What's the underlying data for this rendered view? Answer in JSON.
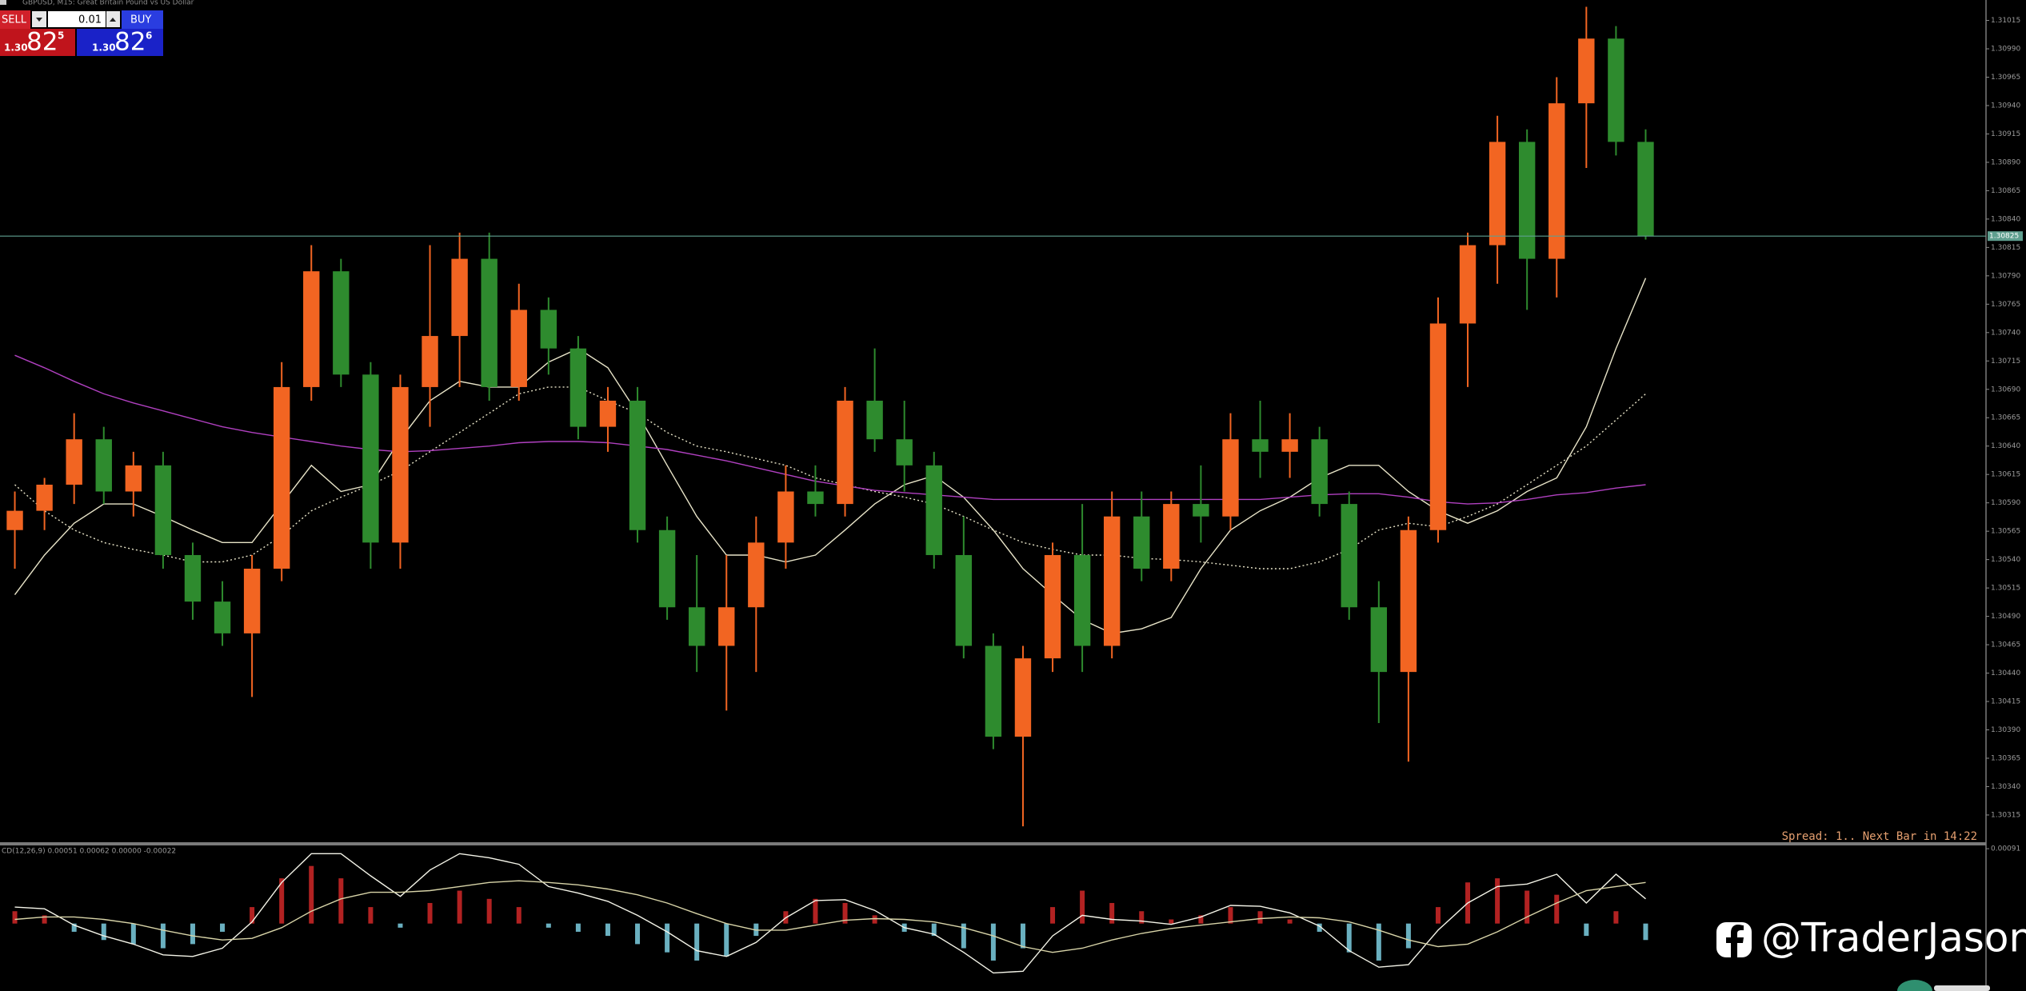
{
  "chart_data": [
    {
      "type": "candlestick",
      "symbol_title": "GBPUSD, M15:  Great Britain Pound vs US Dollar",
      "open": [
        1.30566,
        1.30583,
        1.30606,
        1.30646,
        1.306,
        1.30623,
        1.30544,
        1.30503,
        1.30475,
        1.30532,
        1.30692,
        1.30794,
        1.30703,
        1.30555,
        1.30692,
        1.30737,
        1.30805,
        1.30692,
        1.3076,
        1.30726,
        1.30657,
        1.3068,
        1.30566,
        1.30498,
        1.30464,
        1.30498,
        1.30555,
        1.306,
        1.30589,
        1.3068,
        1.30646,
        1.30623,
        1.30544,
        1.30464,
        1.30384,
        1.30453,
        1.30544,
        1.30464,
        1.30578,
        1.30532,
        1.30589,
        1.30578,
        1.30646,
        1.30635,
        1.30646,
        1.30589,
        1.30498,
        1.30441,
        1.30566,
        1.30748,
        1.30817,
        1.30908,
        1.30805,
        1.30942,
        1.30999,
        1.30908
      ],
      "high": [
        1.306,
        1.30612,
        1.30669,
        1.30657,
        1.30635,
        1.30635,
        1.30555,
        1.30521,
        1.30544,
        1.30714,
        1.30817,
        1.30805,
        1.30714,
        1.30703,
        1.30817,
        1.30828,
        1.30828,
        1.30783,
        1.30771,
        1.30737,
        1.30692,
        1.30692,
        1.30578,
        1.30544,
        1.30544,
        1.30578,
        1.30623,
        1.30623,
        1.30692,
        1.30726,
        1.3068,
        1.30635,
        1.30578,
        1.30475,
        1.30464,
        1.30555,
        1.30589,
        1.306,
        1.306,
        1.306,
        1.30623,
        1.30669,
        1.3068,
        1.30669,
        1.30657,
        1.306,
        1.30521,
        1.30578,
        1.30771,
        1.30828,
        1.30931,
        1.30919,
        1.30965,
        1.31027,
        1.3101,
        1.30919
      ],
      "low": [
        1.30532,
        1.30566,
        1.30589,
        1.30589,
        1.30578,
        1.30532,
        1.30487,
        1.30464,
        1.30419,
        1.30521,
        1.3068,
        1.30692,
        1.30532,
        1.30532,
        1.30657,
        1.30692,
        1.3068,
        1.3068,
        1.30703,
        1.30646,
        1.30635,
        1.30555,
        1.30487,
        1.30441,
        1.30407,
        1.30441,
        1.30532,
        1.30578,
        1.30578,
        1.30635,
        1.306,
        1.30532,
        1.30453,
        1.30373,
        1.30305,
        1.30441,
        1.30441,
        1.30453,
        1.30521,
        1.30521,
        1.30555,
        1.30566,
        1.30612,
        1.30612,
        1.30578,
        1.30487,
        1.30396,
        1.30362,
        1.30555,
        1.30692,
        1.30783,
        1.3076,
        1.30771,
        1.30885,
        1.30896,
        1.30822
      ],
      "close": [
        1.30583,
        1.30606,
        1.30646,
        1.306,
        1.30623,
        1.30544,
        1.30503,
        1.30475,
        1.30532,
        1.30692,
        1.30794,
        1.30703,
        1.30555,
        1.30692,
        1.30737,
        1.30805,
        1.30692,
        1.3076,
        1.30726,
        1.30657,
        1.3068,
        1.30566,
        1.30498,
        1.30464,
        1.30498,
        1.30555,
        1.306,
        1.30589,
        1.3068,
        1.30646,
        1.30623,
        1.30544,
        1.30464,
        1.30384,
        1.30453,
        1.30544,
        1.30464,
        1.30578,
        1.30532,
        1.30589,
        1.30578,
        1.30646,
        1.30635,
        1.30646,
        1.30589,
        1.30498,
        1.30441,
        1.30566,
        1.30748,
        1.30817,
        1.30908,
        1.30805,
        1.30942,
        1.30999,
        1.30908,
        1.30825
      ],
      "up_color": "#f26522",
      "down_color": "#2e8b2e",
      "lines": [
        {
          "color": "#e8e4c8",
          "style": "solid",
          "values": [
            1.30509,
            1.30544,
            1.30572,
            1.30589,
            1.30589,
            1.30578,
            1.30566,
            1.30555,
            1.30555,
            1.30589,
            1.30623,
            1.306,
            1.30606,
            1.30646,
            1.3068,
            1.30697,
            1.30692,
            1.30692,
            1.30714,
            1.30726,
            1.30709,
            1.30669,
            1.30623,
            1.30578,
            1.30544,
            1.30544,
            1.30538,
            1.30544,
            1.30566,
            1.30589,
            1.30606,
            1.30614,
            1.30595,
            1.30566,
            1.30532,
            1.30509,
            1.30487,
            1.30475,
            1.30479,
            1.30489,
            1.30532,
            1.30566,
            1.30583,
            1.30595,
            1.30612,
            1.30623,
            1.30623,
            1.306,
            1.30583,
            1.30572,
            1.30583,
            1.306,
            1.30612,
            1.30657,
            1.30726,
            1.30788
          ]
        },
        {
          "color": "#e8e4c8",
          "style": "dotted",
          "values": [
            1.30606,
            1.30583,
            1.30566,
            1.30555,
            1.30549,
            1.30544,
            1.30538,
            1.30538,
            1.30544,
            1.30561,
            1.30583,
            1.30595,
            1.30606,
            1.30618,
            1.30635,
            1.30652,
            1.30669,
            1.30686,
            1.30692,
            1.30692,
            1.3068,
            1.30669,
            1.30652,
            1.3064,
            1.30635,
            1.30629,
            1.30623,
            1.30612,
            1.30606,
            1.306,
            1.30595,
            1.30589,
            1.30578,
            1.30566,
            1.30555,
            1.30549,
            1.30544,
            1.30544,
            1.30541,
            1.3054,
            1.30538,
            1.30535,
            1.30532,
            1.30532,
            1.30538,
            1.30549,
            1.30566,
            1.30572,
            1.30569,
            1.30578,
            1.30589,
            1.30606,
            1.30623,
            1.3064,
            1.30663,
            1.30686
          ]
        },
        {
          "color": "#b040c0",
          "style": "solid",
          "values": [
            1.3072,
            1.30709,
            1.30697,
            1.30686,
            1.30678,
            1.30671,
            1.30664,
            1.30657,
            1.30652,
            1.30648,
            1.30644,
            1.3064,
            1.30637,
            1.30635,
            1.30636,
            1.30638,
            1.3064,
            1.30643,
            1.30644,
            1.30644,
            1.30643,
            1.3064,
            1.30637,
            1.30632,
            1.30627,
            1.30621,
            1.30615,
            1.30609,
            1.30605,
            1.30601,
            1.30599,
            1.30597,
            1.30595,
            1.30593,
            1.30593,
            1.30593,
            1.30593,
            1.30593,
            1.30593,
            1.30593,
            1.30593,
            1.30593,
            1.30593,
            1.30595,
            1.30597,
            1.30598,
            1.30598,
            1.30595,
            1.30591,
            1.30589,
            1.3059,
            1.30593,
            1.30597,
            1.30599,
            1.30603,
            1.30606
          ]
        }
      ],
      "current_price": 1.30825,
      "current_color": "#5f9f8f",
      "ylim": [
        1.30291,
        1.31033
      ],
      "yticks": [
        1.30315,
        {
          "value": 1.3034,
          "label": "1.30340"
        },
        1.30365,
        {
          "value": 1.3039,
          "label": "1.30390"
        },
        1.30415,
        {
          "value": 1.3044,
          "label": "1.30440"
        },
        1.30465,
        {
          "value": 1.3049,
          "label": "1.30490"
        },
        1.30515,
        {
          "value": 1.3054,
          "label": "1.30540"
        },
        1.30565,
        {
          "value": 1.3059,
          "label": "1.30590"
        },
        1.30615,
        {
          "value": 1.3064,
          "label": "1.30640"
        },
        1.30665,
        {
          "value": 1.3069,
          "label": "1.30690"
        },
        1.30715,
        {
          "value": 1.3074,
          "label": "1.30740"
        },
        1.30765,
        {
          "value": 1.3079,
          "label": "1.30790"
        },
        1.30815,
        {
          "value": 1.3084,
          "label": "1.30840"
        },
        1.30865,
        {
          "value": 1.3089,
          "label": "1.30890"
        },
        1.30915,
        {
          "value": 1.3094,
          "label": "1.30940"
        },
        1.30965,
        {
          "value": 1.3099,
          "label": "1.30990"
        },
        1.31015
      ],
      "grid": false
    },
    {
      "type": "macd",
      "label": "CD(12,26,9) 0.00051 0.00062 0.00000 -0.00022",
      "histogram": [
        0.00015,
        0.0001,
        -0.0001,
        -0.0002,
        -0.00025,
        -0.0003,
        -0.00025,
        -0.0001,
        0.0002,
        0.00055,
        0.0007,
        0.00055,
        0.0002,
        -5e-05,
        0.00025,
        0.0004,
        0.0003,
        0.0002,
        -5e-05,
        -0.0001,
        -0.00015,
        -0.00025,
        -0.00035,
        -0.00045,
        -0.0004,
        -0.00015,
        0.00015,
        0.0003,
        0.00025,
        0.0001,
        -0.0001,
        -0.00015,
        -0.0003,
        -0.00045,
        -0.0003,
        0.0002,
        0.0004,
        0.00025,
        0.00015,
        5e-05,
        0.0001,
        0.0002,
        0.00015,
        5e-05,
        -0.0001,
        -0.00035,
        -0.00045,
        -0.0003,
        0.0002,
        0.0005,
        0.00055,
        0.0004,
        0.00035,
        -0.00015,
        0.00015,
        -0.0002
      ],
      "positive_color": "#b22222",
      "negative_color": "#6ab0c0",
      "lines": [
        {
          "color": "#f4f4e8",
          "style": "solid",
          "values": [
            0.0002,
            0.00018,
            -2e-05,
            -0.00015,
            -0.00025,
            -0.00038,
            -0.0004,
            -0.0003,
            2e-05,
            0.0005,
            0.00085,
            0.00085,
            0.00058,
            0.00033,
            0.00065,
            0.00085,
            0.0008,
            0.00072,
            0.00045,
            0.00037,
            0.00027,
            0.0001,
            -0.0001,
            -0.00033,
            -0.0004,
            -0.00023,
            7e-05,
            0.00028,
            0.00029,
            0.00016,
            -5e-05,
            -0.00013,
            -0.00035,
            -0.0006,
            -0.00058,
            -0.00015,
            0.0001,
            5e-05,
            3e-05,
            -1e-05,
            8e-05,
            0.00022,
            0.00021,
            0.00013,
            -3e-05,
            -0.00033,
            -0.00053,
            -0.0005,
            -8e-05,
            0.00025,
            0.00045,
            0.00048,
            0.0006,
            0.00025,
            0.0006,
            0.0003
          ]
        },
        {
          "color": "#d8d4a8",
          "style": "solid",
          "values": [
            5e-05,
            8e-05,
            8e-05,
            5e-05,
            0,
            -8e-05,
            -0.00015,
            -0.0002,
            -0.00018,
            -5e-05,
            0.00015,
            0.0003,
            0.00038,
            0.00038,
            0.0004,
            0.00045,
            0.0005,
            0.00052,
            0.0005,
            0.00047,
            0.00042,
            0.00035,
            0.00025,
            0.00012,
            0,
            -8e-05,
            -8e-05,
            -2e-05,
            4e-05,
            6e-05,
            5e-05,
            2e-05,
            -5e-05,
            -0.00015,
            -0.00028,
            -0.00035,
            -0.0003,
            -0.0002,
            -0.00012,
            -6e-05,
            -2e-05,
            2e-05,
            6e-05,
            8e-05,
            7e-05,
            2e-05,
            -8e-05,
            -0.0002,
            -0.00028,
            -0.00025,
            -0.0001,
            8e-05,
            0.00025,
            0.0004,
            0.00045,
            0.0005
          ]
        }
      ],
      "ylim": [
        -0.00082,
        0.00094
      ],
      "yticks": [
        0.00091
      ]
    }
  ],
  "trade_panel": {
    "sell_label": "SELL",
    "lot": "0.01",
    "buy_label": "BUY",
    "bid": {
      "prefix": "1.30",
      "big": "82",
      "small": "5"
    },
    "ask": {
      "prefix": "1.30",
      "big": "82",
      "small": "6"
    }
  },
  "status_text": "Spread: 1.. Next Bar in 14:22",
  "watermark": "@TraderJason"
}
